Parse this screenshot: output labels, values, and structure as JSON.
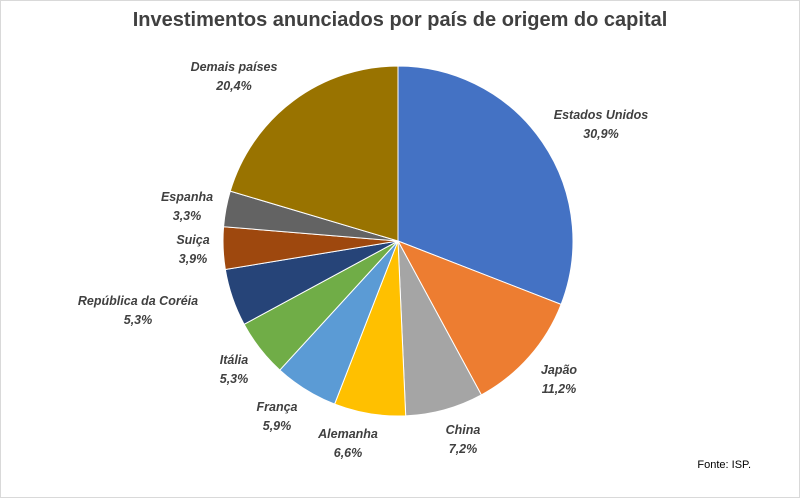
{
  "chart_data": {
    "type": "pie",
    "title": "Investimentos anunciados por país de origem do capital",
    "source": "Fonte: ISP.",
    "slices": [
      {
        "label": "Estados Unidos",
        "value": 30.9,
        "value_label": "30,9%",
        "color": "#4472C4"
      },
      {
        "label": "Japão",
        "value": 11.2,
        "value_label": "11,2%",
        "color": "#ED7D31"
      },
      {
        "label": "China",
        "value": 7.2,
        "value_label": "7,2%",
        "color": "#A5A5A5"
      },
      {
        "label": "Alemanha",
        "value": 6.6,
        "value_label": "6,6%",
        "color": "#FFC000"
      },
      {
        "label": "França",
        "value": 5.9,
        "value_label": "5,9%",
        "color": "#5B9BD5"
      },
      {
        "label": "Itália",
        "value": 5.3,
        "value_label": "5,3%",
        "color": "#70AD47"
      },
      {
        "label": "República da Coréia",
        "value": 5.3,
        "value_label": "5,3%",
        "color": "#264478"
      },
      {
        "label": "Suiça",
        "value": 3.9,
        "value_label": "3,9%",
        "color": "#9E480E"
      },
      {
        "label": "Espanha",
        "value": 3.3,
        "value_label": "3,3%",
        "color": "#636363"
      },
      {
        "label": "Demais países",
        "value": 20.4,
        "value_label": "20,4%",
        "color": "#997300"
      }
    ]
  }
}
